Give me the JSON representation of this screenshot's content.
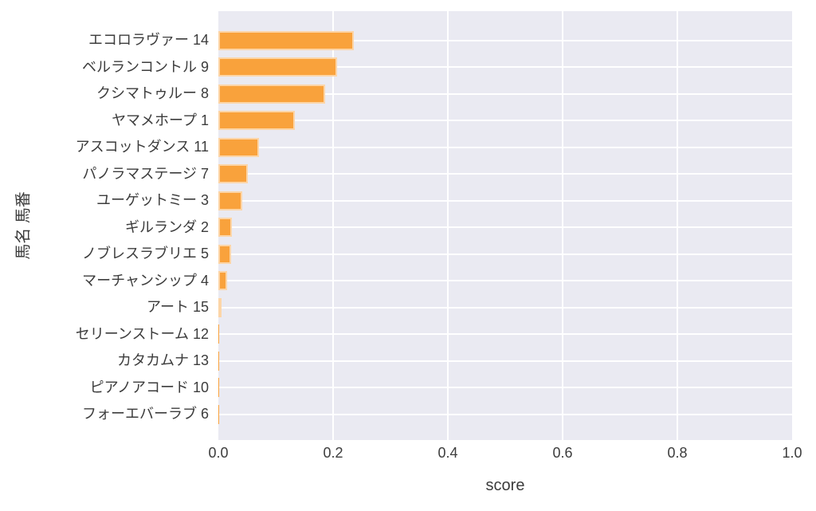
{
  "chart_data": {
    "type": "bar",
    "orientation": "horizontal",
    "title": "",
    "xlabel": "score",
    "ylabel": "馬名 馬番",
    "xlim": [
      0.0,
      1.0
    ],
    "xticks": [
      0.0,
      0.2,
      0.4,
      0.6,
      0.8,
      1.0
    ],
    "xtick_labels": [
      "0.0",
      "0.2",
      "0.4",
      "0.6",
      "0.8",
      "1.0"
    ],
    "grid": true,
    "legend": false,
    "categories": [
      "エコロラヴァー 14",
      "ベルランコントル 9",
      "クシマトゥルー 8",
      "ヤマメホープ 1",
      "アスコットダンス 11",
      "パノラマステージ 7",
      "ユーゲットミー 3",
      "ギルランダ 2",
      "ノブレスラブリエ 5",
      "マーチャンシップ 4",
      "アート 15",
      "セリーンストーム 12",
      "カタカムナ 13",
      "ピアノアコード 10",
      "フォーエバーラブ 6"
    ],
    "values": [
      0.236,
      0.207,
      0.186,
      0.134,
      0.071,
      0.051,
      0.041,
      0.023,
      0.022,
      0.015,
      0.005,
      0.001,
      0.001,
      0.001,
      0.001
    ],
    "colors": {
      "bar": "#F9A23C",
      "bar_edge": "rgba(255,255,255,0.55)",
      "plot_background": "#EAEAF2",
      "grid": "#FFFFFF",
      "text": "#3C3C3C"
    }
  }
}
